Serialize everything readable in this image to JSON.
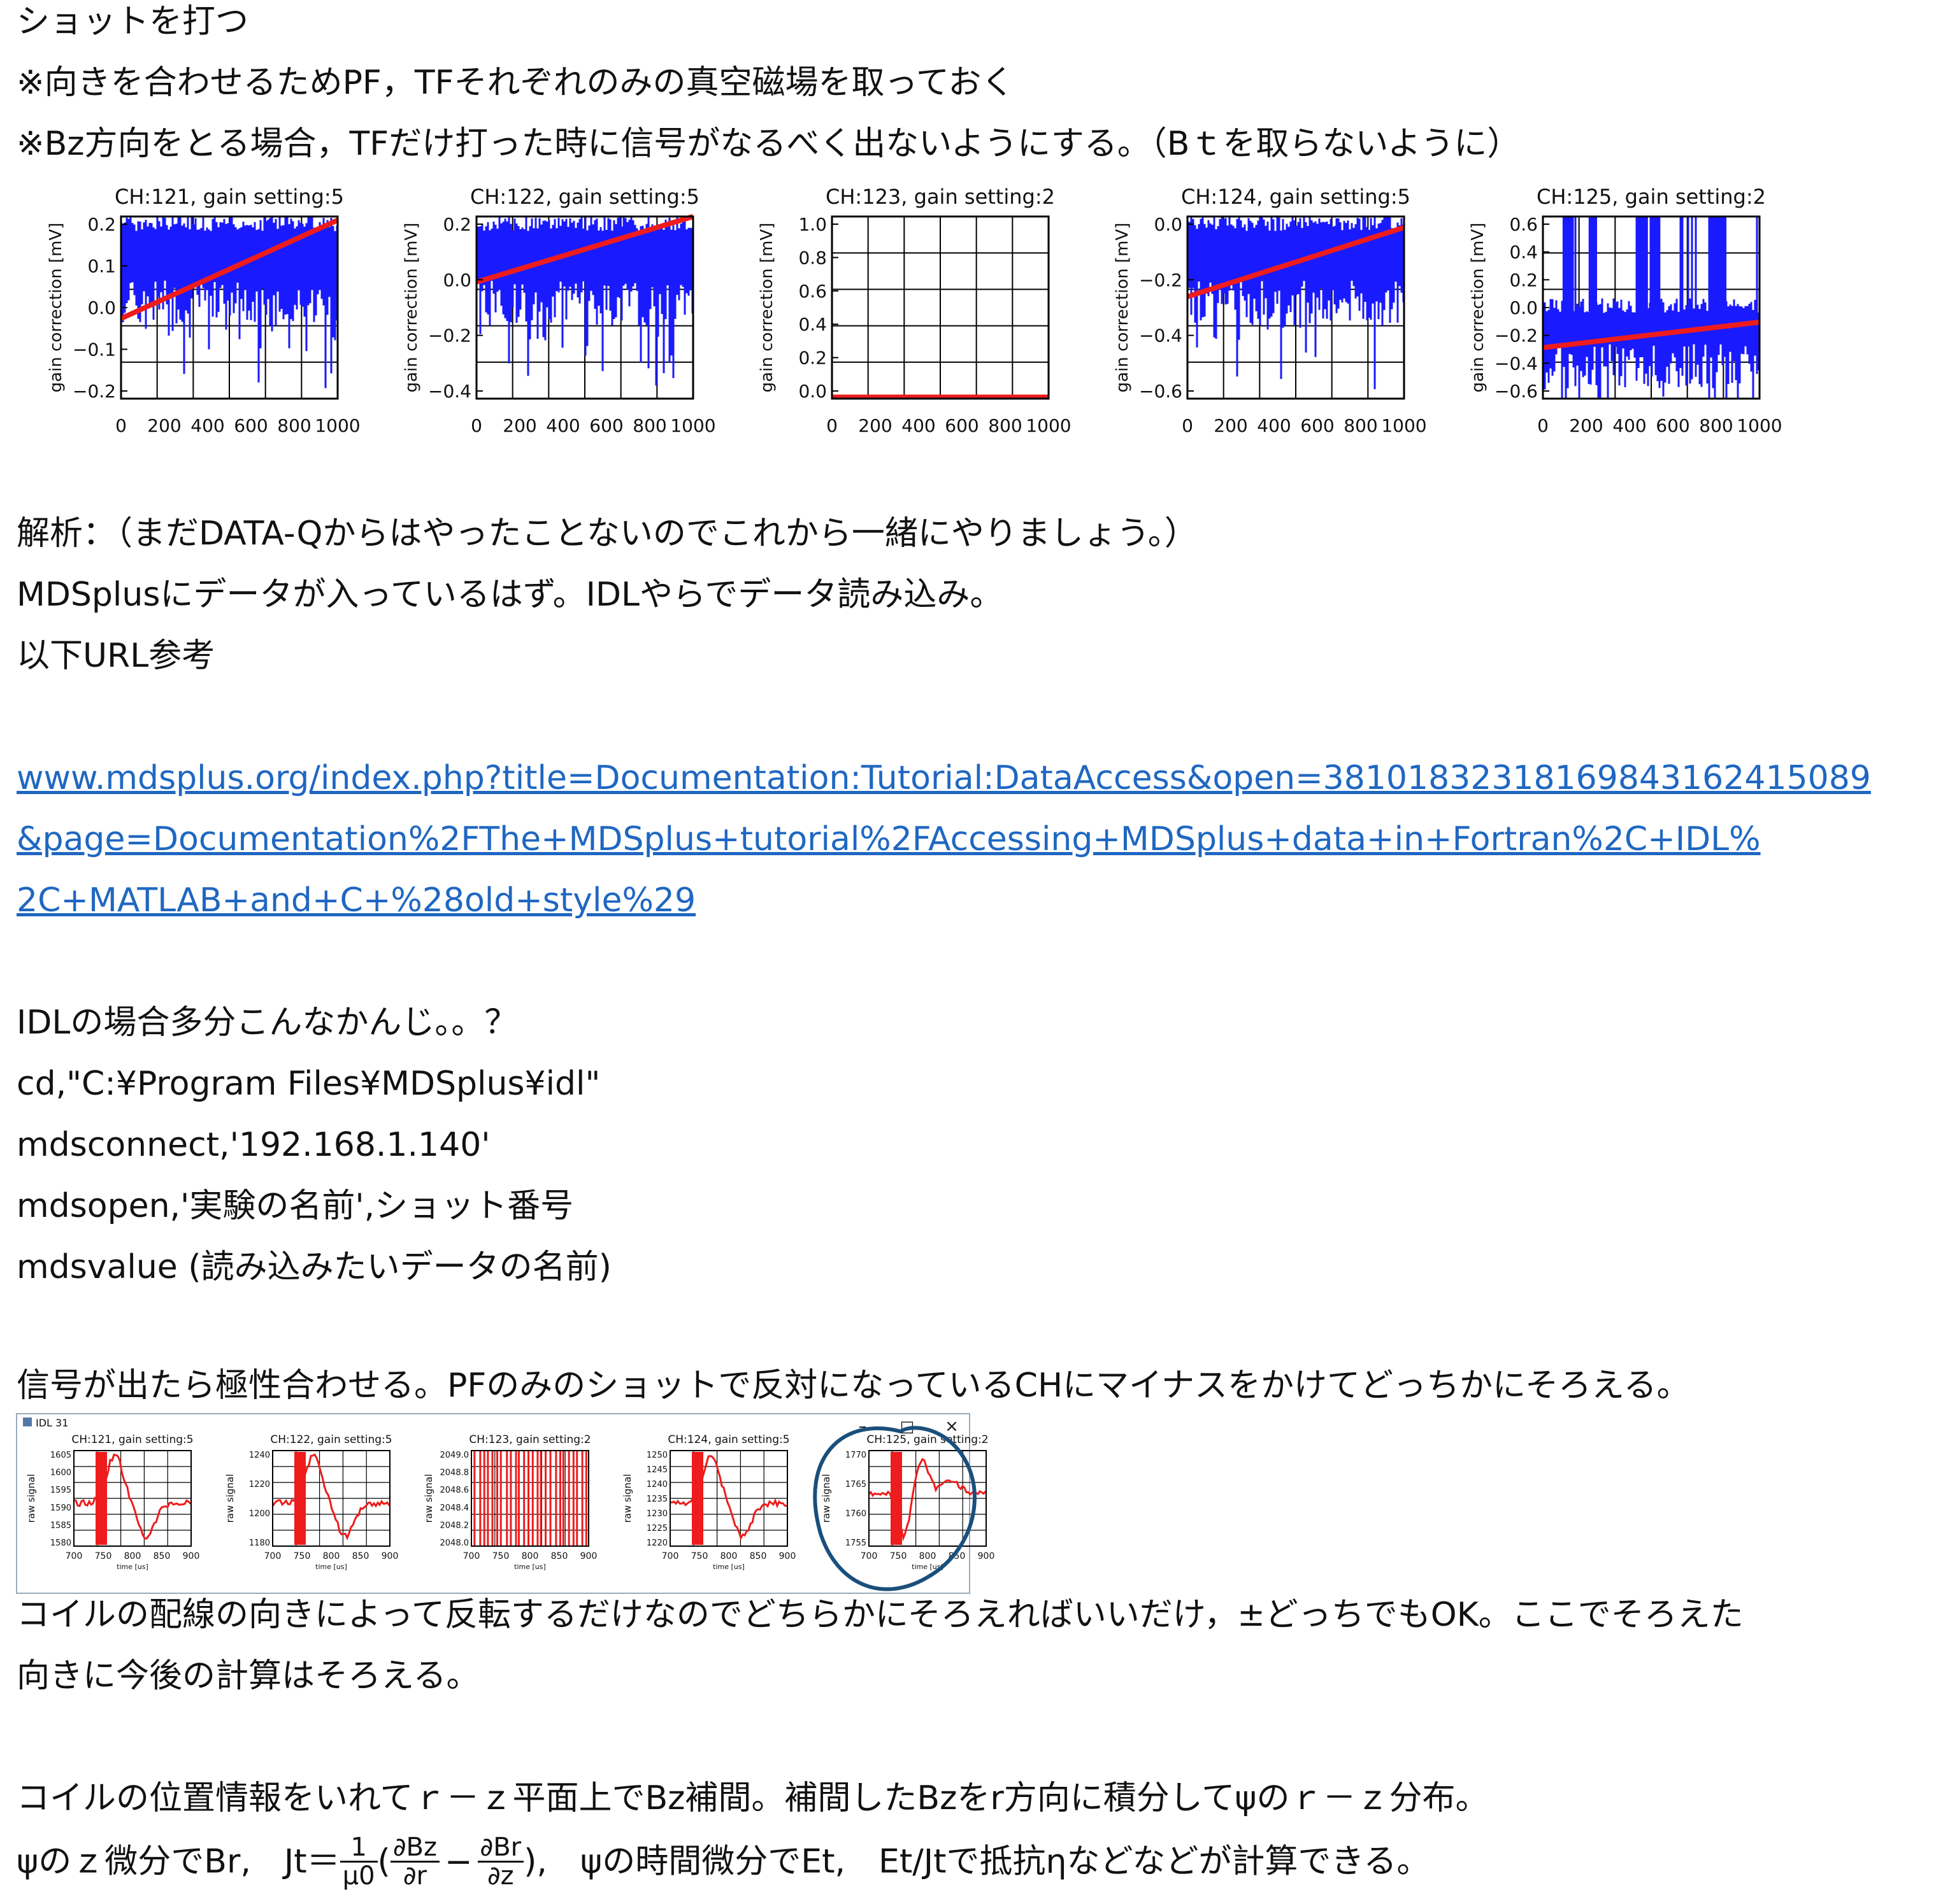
{
  "lines": {
    "l1": "ショットを打つ",
    "l2": "※向きを合わせるためPF，TFそれぞれのみの真空磁場を取っておく",
    "l3": "※Bz方向をとる場合，TFだけ打った時に信号がなるべく出ないようにする。（Bｔを取らないように）",
    "l4": "解析：（まだDATA-Qからはやったことないのでこれから一緒にやりましょう。）",
    "l5": "MDSplusにデータが入っているはず。IDLやらでデータ読み込み。",
    "l6": "以下URL参考",
    "url1": "www.mdsplus.org/index.php?title=Documentation:Tutorial:DataAccess&open=38101832318169843162415089",
    "url2": "&page=Documentation%2FThe+MDSplus+tutorial%2FAccessing+MDSplus+data+in+Fortran%2C+IDL%",
    "url3": "2C+MATLAB+and+C+%28old+style%29",
    "l7": "IDLの場合多分こんなかんじ。。？",
    "l8": "cd,\"C:¥Program Files¥MDSplus¥idl\"",
    "l9": "mdsconnect,'192.168.1.140'",
    "l10": "mdsopen,'実験の名前',ショット番号",
    "l11": "mdsvalue (読み込みたいデータの名前)",
    "l12": "信号が出たら極性合わせる。PFのみのショットで反対になっているCHにマイナスをかけてどっちかにそろえる。",
    "l13": "コイルの配線の向きによって反転するだけなのでどちらかにそろえればいいだけ，±どっちでもOK。ここでそろえた",
    "l14": "向きに今後の計算はそろえる。",
    "l15": "コイルの位置情報をいれてｒ－ｚ平面上でBz補間。補間したBzをr方向に積分してψのｒ－ｚ分布。",
    "f_pre": "ψのｚ微分でBr,　Jt＝",
    "f_frac1_num": "1",
    "f_frac1_den": "μ0",
    "f_open": "(",
    "f_frac2_num": "∂Bz",
    "f_frac2_den": "∂r",
    "f_minus": "−",
    "f_frac3_num": "∂Br",
    "f_frac3_den": "∂z",
    "f_post": "),　ψの時間微分でEt,　Et/Jtで抵抗ηなどなどが計算できる。"
  },
  "top_plots": {
    "ylabel": "gain correction [mV]",
    "xticks": [
      "0",
      "200",
      "400",
      "600",
      "800",
      "1000"
    ],
    "panels": [
      {
        "title": "CH:121, gain setting:5",
        "yticks": [
          "0.2",
          "0.1",
          "0.0",
          "−0.1",
          "−0.2"
        ]
      },
      {
        "title": "CH:122, gain setting:5",
        "yticks": [
          "0.2",
          "0.0",
          "−0.2",
          "−0.4"
        ]
      },
      {
        "title": "CH:123, gain setting:2",
        "yticks": [
          "1.0",
          "0.8",
          "0.6",
          "0.4",
          "0.2",
          "0.0"
        ]
      },
      {
        "title": "CH:124, gain setting:5",
        "yticks": [
          "0.0",
          "−0.2",
          "−0.4",
          "−0.6"
        ]
      },
      {
        "title": "CH:125, gain setting:2",
        "yticks": [
          "0.6",
          "0.4",
          "0.2",
          "0.0",
          "−0.2",
          "−0.4",
          "−0.6"
        ]
      }
    ]
  },
  "idl_window": {
    "title": "IDL 31",
    "ylabel": "raw signal",
    "xlabel": "time [us]",
    "xticks": [
      "700",
      "750",
      "800",
      "850",
      "900"
    ],
    "win_min": "–",
    "win_max": "□",
    "win_close": "×",
    "panels": [
      {
        "title": "CH:121, gain setting:5",
        "yticks": [
          "1605",
          "1600",
          "1595",
          "1590",
          "1585",
          "1580"
        ]
      },
      {
        "title": "CH:122, gain setting:5",
        "yticks": [
          "1240",
          "1220",
          "1200",
          "1180"
        ]
      },
      {
        "title": "CH:123, gain setting:2",
        "yticks": [
          "2049.0",
          "2048.8",
          "2048.6",
          "2048.4",
          "2048.2",
          "2048.0"
        ]
      },
      {
        "title": "CH:124, gain setting:5",
        "yticks": [
          "1250",
          "1245",
          "1240",
          "1235",
          "1230",
          "1225",
          "1220"
        ]
      },
      {
        "title": "CH:125, gain setting:2",
        "yticks": [
          "1770",
          "1765",
          "1760",
          "1755"
        ]
      }
    ]
  },
  "colors": {
    "link": "#1f67c2",
    "noise": "#1a1aff",
    "fit": "#ee1c1c",
    "signal": "#ee1c1c",
    "circle": "#1a4f7c"
  }
}
